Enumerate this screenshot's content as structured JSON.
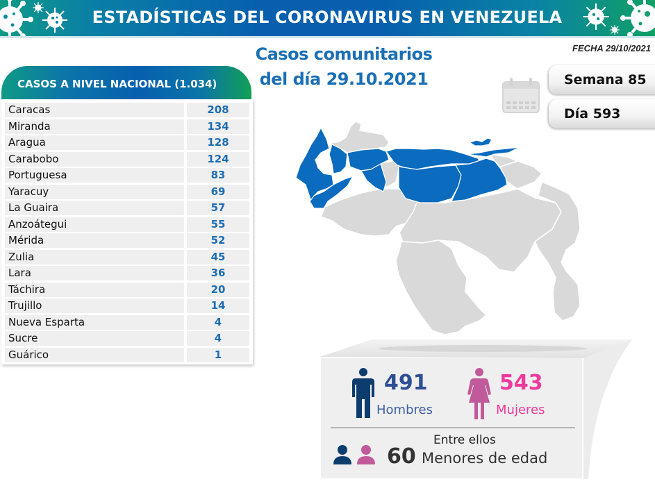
{
  "banner": {
    "title": "ESTADÍSTICAS DEL CORONAVIRUS EN VENEZUELA"
  },
  "header": {
    "title_line1": "Casos comunitarios",
    "title_line2": "del día 29.10.2021",
    "fecha": "FECHA 29/10/2021"
  },
  "period": {
    "week": "Semana 85",
    "day": "Día 593",
    "icon": "calendar-icon"
  },
  "national": {
    "header": "CASOS A NIVEL NACIONAL  (1.034)",
    "rows": [
      {
        "state": "Caracas",
        "cases": "208"
      },
      {
        "state": "Miranda",
        "cases": "134"
      },
      {
        "state": "Aragua",
        "cases": "128"
      },
      {
        "state": "Carabobo",
        "cases": "124"
      },
      {
        "state": "Portuguesa",
        "cases": "83"
      },
      {
        "state": "Yaracuy",
        "cases": "69"
      },
      {
        "state": "La Guaira",
        "cases": "57"
      },
      {
        "state": "Anzoátegui",
        "cases": "55"
      },
      {
        "state": "Mérida",
        "cases": "52"
      },
      {
        "state": "Zulia",
        "cases": "45"
      },
      {
        "state": "Lara",
        "cases": "36"
      },
      {
        "state": "Táchira",
        "cases": "20"
      },
      {
        "state": "Trujillo",
        "cases": "14"
      },
      {
        "state": "Nueva Esparta",
        "cases": "4"
      },
      {
        "state": "Sucre",
        "cases": "4"
      },
      {
        "state": "Guárico",
        "cases": "1"
      }
    ]
  },
  "map": {
    "highlight_color": "#0a6bbf",
    "base_color": "#d9d9d9"
  },
  "stats": {
    "men_count": "491",
    "men_label": "Hombres",
    "women_count": "543",
    "women_label": "Mujeres",
    "between_label": "Entre ellos",
    "minors_count": "60",
    "minors_label": "Menores de edad",
    "colors": {
      "men": "#0d3d6e",
      "women": "#c15a9a",
      "women_text": "#ee3a9c"
    }
  }
}
